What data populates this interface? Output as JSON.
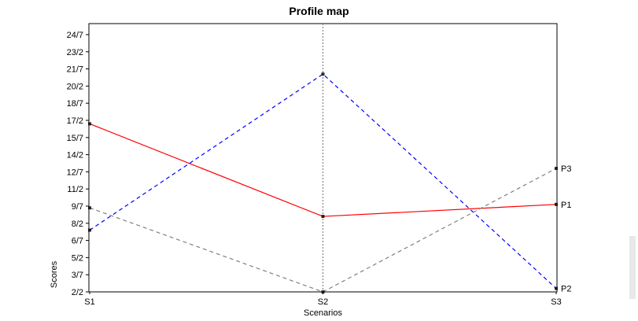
{
  "chart_data": {
    "type": "line",
    "title": "Profile map",
    "xlabel": "Scenarios",
    "ylabel": "Scores",
    "categories": [
      "S1",
      "S2",
      "S3"
    ],
    "y_tick_labels": [
      "2/2",
      "3/7",
      "5/2",
      "6/7",
      "8/2",
      "9/7",
      "11/2",
      "12/7",
      "14/2",
      "15/7",
      "17/2",
      "18/7",
      "20/2",
      "21/7",
      "23/2",
      "24/7"
    ],
    "ylim_tick_index": [
      0,
      15
    ],
    "series": [
      {
        "name": "P1",
        "values": [
          9.8,
          4.4,
          5.1
        ],
        "color": "#ff0000",
        "style": "solid"
      },
      {
        "name": "P2",
        "values": [
          3.6,
          12.7,
          0.2
        ],
        "color": "#0000ff",
        "style": "dashed"
      },
      {
        "name": "P3",
        "values": [
          4.9,
          0.0,
          7.2
        ],
        "color": "#808080",
        "style": "dashed"
      }
    ],
    "vertical_reference_at": "S2",
    "grid": false,
    "legend": "labels at right end of lines"
  }
}
